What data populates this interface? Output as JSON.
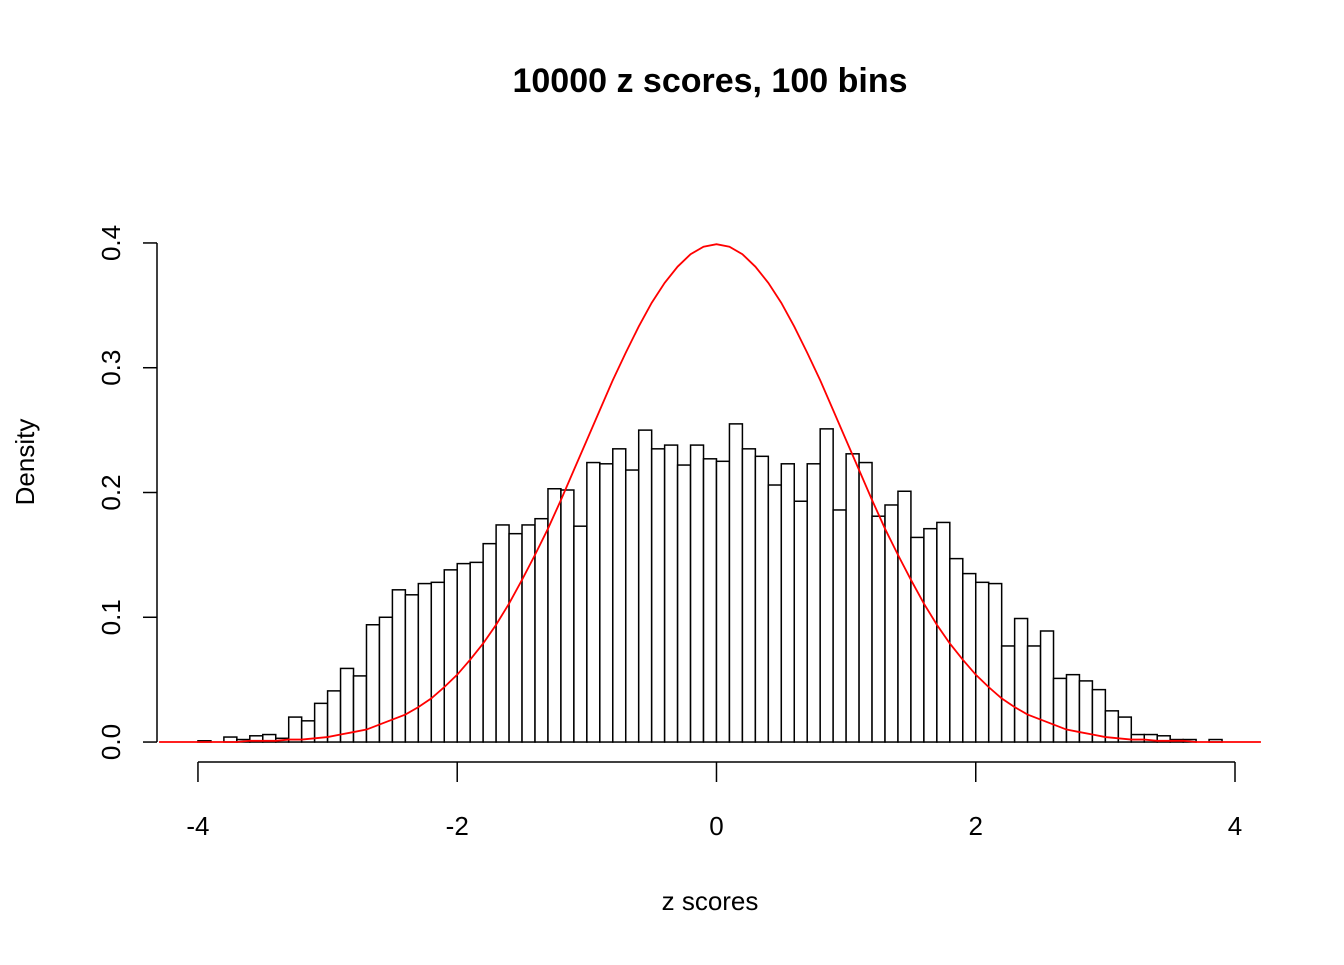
{
  "chart_data": {
    "type": "histogram",
    "title": "10000 z scores, 100 bins",
    "xlabel": "z scores",
    "ylabel": "Density",
    "bins": [
      -4,
      -3.9,
      -3.8,
      -3.7,
      -3.6,
      -3.5,
      -3.4,
      -3.3,
      -3.2,
      -3.1,
      -3,
      -2.9,
      -2.8,
      -2.7,
      -2.6,
      -2.5,
      -2.4,
      -2.3,
      -2.2,
      -2.1,
      -2,
      -1.9,
      -1.8,
      -1.7,
      -1.6,
      -1.5,
      -1.4,
      -1.3,
      -1.2,
      -1.1,
      -1,
      -0.9,
      -0.8,
      -0.7,
      -0.6,
      -0.5,
      -0.4,
      -0.3,
      -0.2,
      -0.1,
      0,
      0.1,
      0.2,
      0.3,
      0.4,
      0.5,
      0.6,
      0.7,
      0.8,
      0.9,
      1,
      1.1,
      1.2,
      1.3,
      1.4,
      1.5,
      1.6,
      1.7,
      1.8,
      1.9,
      2,
      2.1,
      2.2,
      2.3,
      2.4,
      2.5,
      2.6,
      2.7,
      2.8,
      2.9,
      3,
      3.1,
      3.2,
      3.3,
      3.4,
      3.5,
      3.6,
      3.7,
      3.8,
      3.9
    ],
    "values": [
      0.001,
      0,
      0.004,
      0.002,
      0.005,
      0.006,
      0.003,
      0.02,
      0.017,
      0.031,
      0.041,
      0.059,
      0.053,
      0.094,
      0.1,
      0.122,
      0.118,
      0.127,
      0.128,
      0.138,
      0.143,
      0.144,
      0.159,
      0.174,
      0.167,
      0.174,
      0.179,
      0.203,
      0.202,
      0.173,
      0.224,
      0.223,
      0.235,
      0.218,
      0.25,
      0.235,
      0.238,
      0.222,
      0.238,
      0.227,
      0.225,
      0.255,
      0.235,
      0.229,
      0.206,
      0.223,
      0.193,
      0.223,
      0.251,
      0.186,
      0.231,
      0.224,
      0.181,
      0.19,
      0.201,
      0.164,
      0.171,
      0.176,
      0.147,
      0.135,
      0.128,
      0.127,
      0.077,
      0.099,
      0.077,
      0.089,
      0.051,
      0.054,
      0.049,
      0.042,
      0.025,
      0.02,
      0.006,
      0.006,
      0.005,
      0.002,
      0.002,
      0,
      0.002
    ],
    "color": "#ffffff",
    "edgecolor": "#000000",
    "xlim": [
      -4.316,
      4.216
    ],
    "ylim": [
      -0.016,
      0.416
    ],
    "xticks": [
      -4,
      -2,
      0,
      2,
      4
    ],
    "yticks": [
      {
        "value": 0,
        "label": "0.0"
      },
      0.1,
      0.2,
      0.3,
      0.4
    ],
    "overlay": {
      "type": "line",
      "color": "#ff0000",
      "x": [
        -4.3,
        -4.2,
        -4.1,
        -4,
        -3.9,
        -3.8,
        -3.7,
        -3.6,
        -3.5,
        -3.4,
        -3.3,
        -3.2,
        -3.1,
        -3,
        -2.9,
        -2.8,
        -2.7,
        -2.6,
        -2.5,
        -2.4,
        -2.3,
        -2.2,
        -2.1,
        -2,
        -1.9,
        -1.8,
        -1.7,
        -1.6,
        -1.5,
        -1.4,
        -1.3,
        -1.2,
        -1.1,
        -1,
        -0.9,
        -0.8,
        -0.7,
        -0.6,
        -0.5,
        -0.4,
        -0.3,
        -0.2,
        -0.1,
        0,
        0.1,
        0.2,
        0.3,
        0.4,
        0.5,
        0.6,
        0.7,
        0.8,
        0.9,
        1,
        1.1,
        1.2,
        1.3,
        1.4,
        1.5,
        1.6,
        1.7,
        1.8,
        1.9,
        2,
        2.1,
        2.2,
        2.3,
        2.4,
        2.5,
        2.6,
        2.7,
        2.8,
        2.9,
        3,
        3.1,
        3.2,
        3.3,
        3.4,
        3.5,
        3.6,
        3.7,
        3.8,
        3.9,
        4,
        4.1,
        4.2
      ],
      "values": [
        0,
        0,
        0,
        0,
        0,
        0,
        0,
        0.001,
        0.001,
        0.001,
        0.002,
        0.002,
        0.003,
        0.004,
        0.006,
        0.008,
        0.01,
        0.014,
        0.018,
        0.022,
        0.028,
        0.035,
        0.044,
        0.054,
        0.066,
        0.079,
        0.094,
        0.111,
        0.13,
        0.15,
        0.171,
        0.194,
        0.218,
        0.242,
        0.266,
        0.29,
        0.312,
        0.333,
        0.352,
        0.368,
        0.381,
        0.391,
        0.397,
        0.399,
        0.397,
        0.391,
        0.381,
        0.368,
        0.352,
        0.333,
        0.312,
        0.29,
        0.266,
        0.242,
        0.218,
        0.194,
        0.171,
        0.15,
        0.13,
        0.111,
        0.094,
        0.079,
        0.066,
        0.054,
        0.044,
        0.035,
        0.028,
        0.022,
        0.018,
        0.014,
        0.01,
        0.008,
        0.006,
        0.004,
        0.003,
        0.002,
        0.002,
        0.001,
        0.001,
        0.001,
        0,
        0,
        0,
        0,
        0,
        0
      ]
    }
  }
}
